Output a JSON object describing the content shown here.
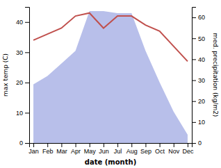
{
  "chart_data": {
    "type": "line",
    "categories": [
      "Jan",
      "Feb",
      "Mar",
      "Apr",
      "May",
      "Jun",
      "Jul",
      "Aug",
      "Sep",
      "Oct",
      "Nov",
      "Dec"
    ],
    "xlabel": "date (month)",
    "ylabel": "max temp (C)",
    "y2label": "med. precipitation (kg/m2)",
    "series": [
      {
        "type": "line",
        "color": "#c0504d",
        "values": [
          34,
          36,
          38,
          42,
          43,
          38,
          42,
          42,
          39,
          37,
          32,
          27
        ]
      },
      {
        "type": "area",
        "color": "#b0b8e8",
        "axis": "y2",
        "values": [
          28,
          32,
          38,
          44,
          63,
          63,
          62,
          62,
          44,
          29,
          15,
          4
        ]
      }
    ],
    "ylim": [
      0,
      45
    ],
    "yticks": [
      0,
      10,
      20,
      30,
      40
    ],
    "y2lim": [
      0,
      65
    ],
    "y2ticks": [
      0,
      10,
      20,
      30,
      40,
      50,
      60
    ],
    "grid": false
  }
}
